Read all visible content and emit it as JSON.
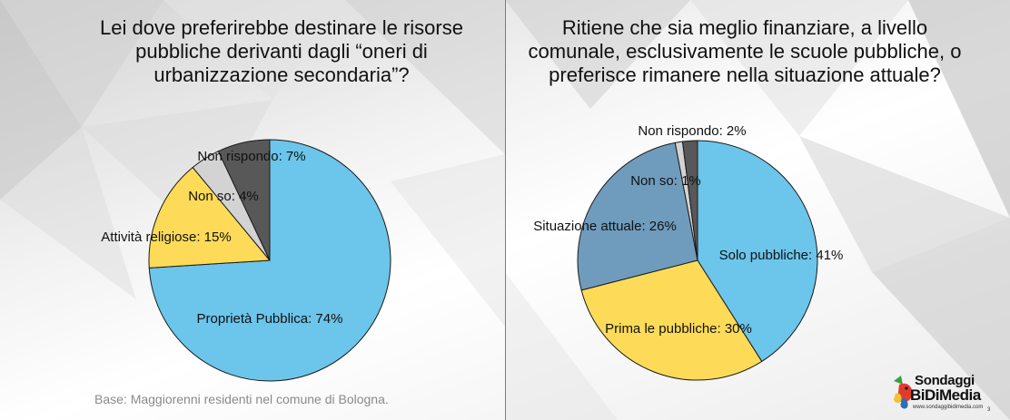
{
  "background": {
    "style": "low-poly gray"
  },
  "chart_data": [
    {
      "type": "pie",
      "title": "Lei dove preferirebbe destinare le risorse pubbliche derivanti dagli “oneri di urbanizzazione secondaria”?",
      "slices": [
        {
          "label": "Proprietà Pubblica: 74%",
          "value": 74,
          "color": "#6cc5ea"
        },
        {
          "label": "Attività religiose: 15%",
          "value": 15,
          "color": "#fddb58"
        },
        {
          "label": "Non so: 4%",
          "value": 4,
          "color": "#d3d3d3"
        },
        {
          "label": "Non rispondo: 7%",
          "value": 7,
          "color": "#585858"
        }
      ]
    },
    {
      "type": "pie",
      "title": "Ritiene che sia meglio finanziare, a livello comunale, esclusivamente le scuole pubbliche, o preferisce rimanere nella situazione attuale?",
      "slices": [
        {
          "label": "Solo pubbliche: 41%",
          "value": 41,
          "color": "#6cc5ea"
        },
        {
          "label": "Prima le pubbliche: 30%",
          "value": 30,
          "color": "#fddb58"
        },
        {
          "label": "Situazione attuale: 26%",
          "value": 26,
          "color": "#6f9cbd"
        },
        {
          "label": "Non so: 1%",
          "value": 1,
          "color": "#d3d3d3"
        },
        {
          "label": "Non rispondo: 2%",
          "value": 2,
          "color": "#585858"
        }
      ]
    }
  ],
  "footer": {
    "base_note": "Base: Maggiorenni residenti nel comune di Bologna."
  },
  "logo": {
    "line1": "Sondaggi",
    "line2": "BiDiMedia",
    "url": "www.sondaggibidimedia.com"
  },
  "page_number": "3"
}
